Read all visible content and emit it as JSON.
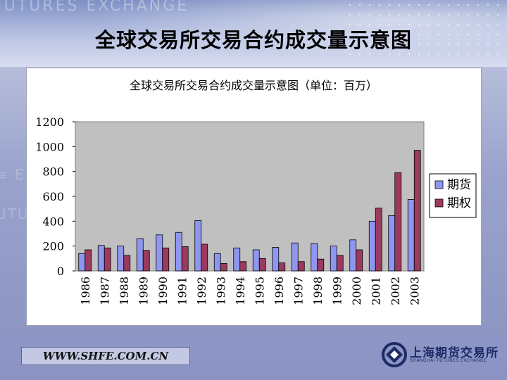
{
  "slide": {
    "title": "全球交易所交易合约成交量示意图",
    "footer_url": "WWW.SHFE.COM.CN",
    "banner_watermark": "FUTURES EXCHANGE",
    "logo_name": "上海期货交易所",
    "logo_subtitle": "SHANGHAI FUTURES EXCHANGE"
  },
  "colors": {
    "futures": "#8f96f0",
    "options": "#9b3a5e",
    "plot_bg": "#c0c0c0",
    "accent": "#1e2a66"
  },
  "chart_data": {
    "type": "bar",
    "title": "全球交易所交易合约成交量示意图（单位：百万）",
    "categories": [
      "1986",
      "1987",
      "1988",
      "1989",
      "1990",
      "1991",
      "1992",
      "1993",
      "1994",
      "1995",
      "1996",
      "1997",
      "1998",
      "1999",
      "2000",
      "2001",
      "2002",
      "2003"
    ],
    "series": [
      {
        "name": "期货",
        "values": [
          140,
          205,
          200,
          260,
          290,
          310,
          405,
          140,
          185,
          170,
          190,
          225,
          220,
          200,
          250,
          400,
          445,
          575
        ]
      },
      {
        "name": "期权",
        "values": [
          170,
          185,
          125,
          165,
          185,
          195,
          215,
          60,
          75,
          100,
          65,
          75,
          95,
          125,
          170,
          505,
          790,
          970
        ]
      }
    ],
    "yticks": [
      0,
      200,
      400,
      600,
      800,
      1000,
      1200
    ],
    "ylim": [
      0,
      1200
    ],
    "grid": false,
    "legend": "right"
  }
}
